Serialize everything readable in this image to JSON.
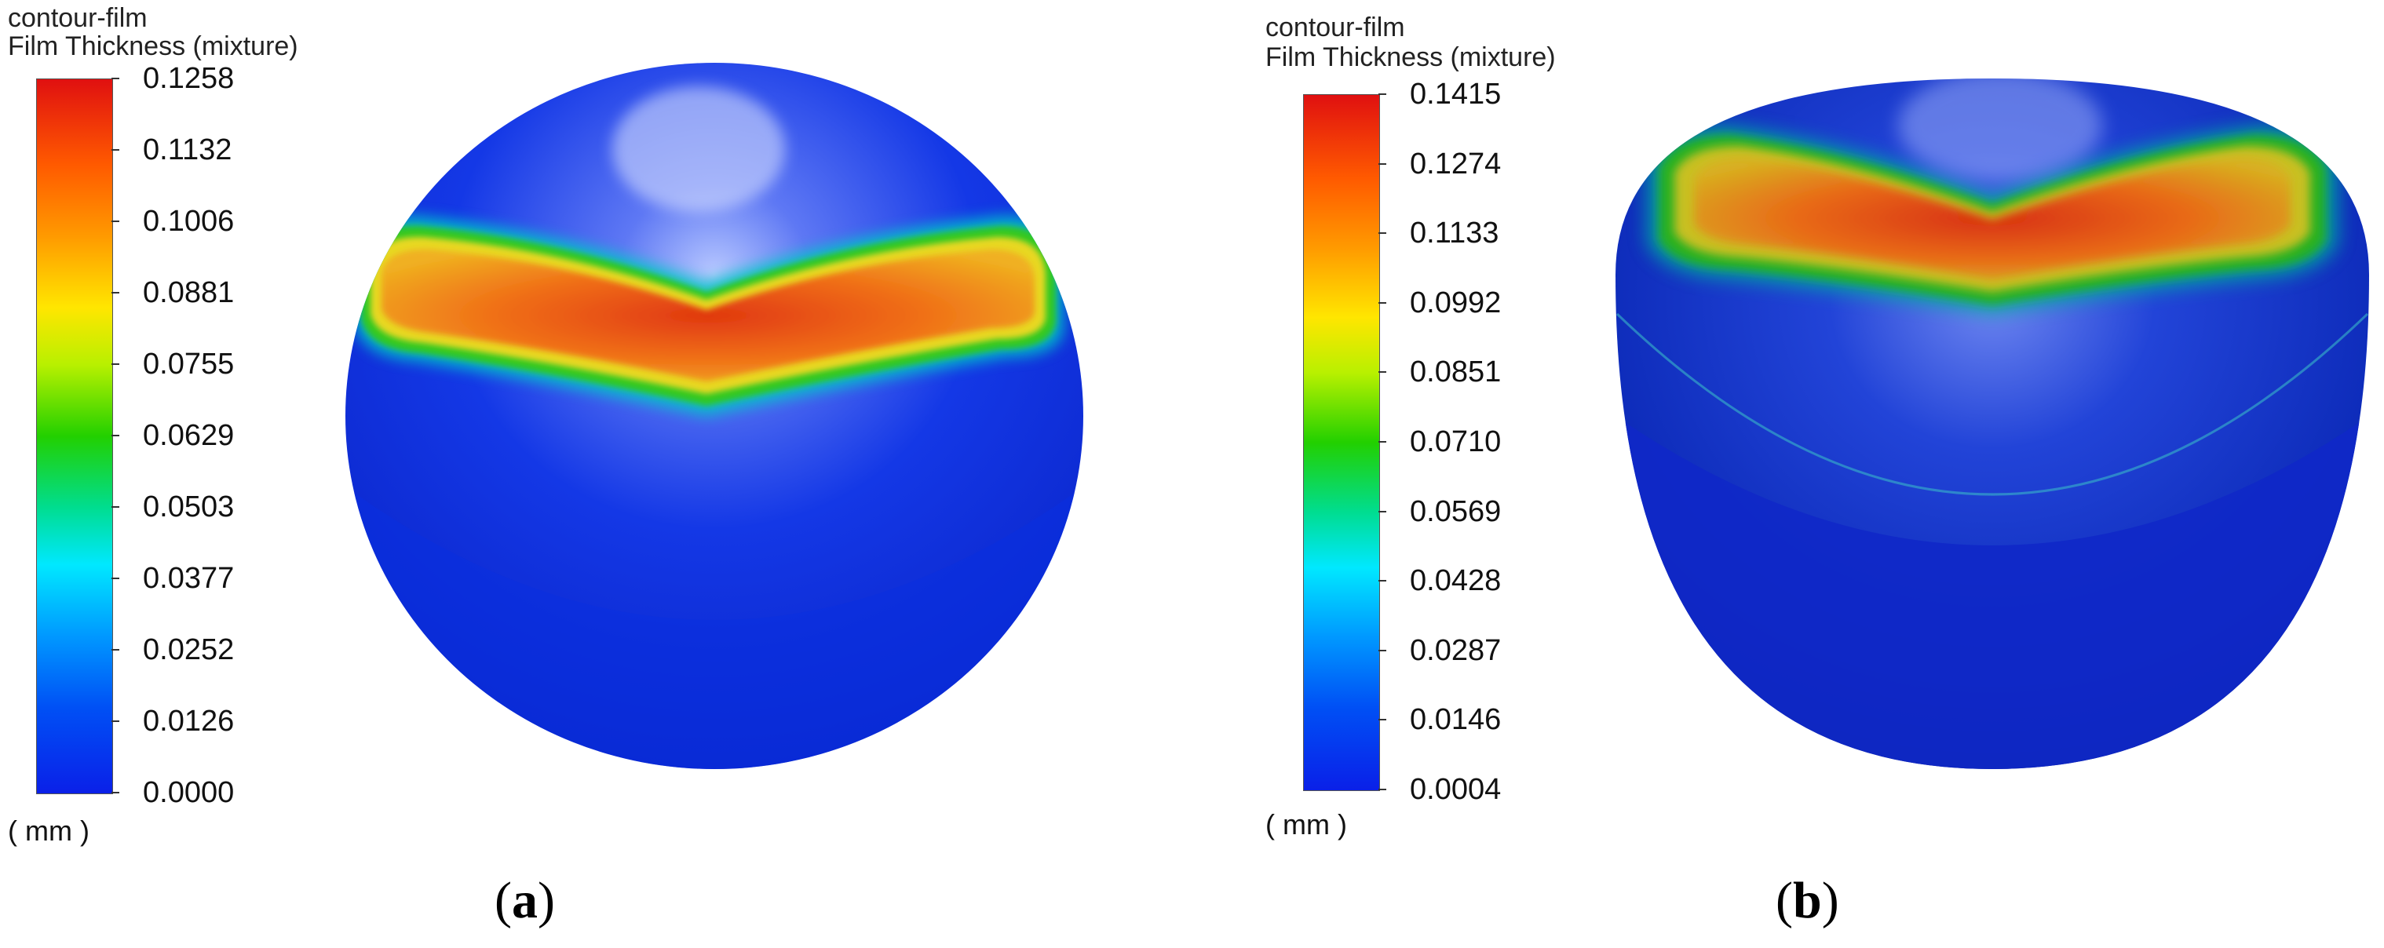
{
  "panels": [
    {
      "id": "a",
      "title_line1": "contour-film",
      "title_line2": "Film Thickness (mixture)",
      "colorbar_ticks": [
        "0.1258",
        "0.1132",
        "0.1006",
        "0.0881",
        "0.0755",
        "0.0629",
        "0.0503",
        "0.0377",
        "0.0252",
        "0.0126",
        "0.0000"
      ],
      "unit": "( mm )",
      "caption_open": "(",
      "caption_letter": "a",
      "caption_close": ")"
    },
    {
      "id": "b",
      "title_line1": "contour-film",
      "title_line2": "Film Thickness (mixture)",
      "colorbar_ticks": [
        "0.1415",
        "0.1274",
        "0.1133",
        "0.0992",
        "0.0851",
        "0.0710",
        "0.0569",
        "0.0428",
        "0.0287",
        "0.0146",
        "0.0004"
      ],
      "unit": "( mm )",
      "caption_open": "(",
      "caption_letter": "b",
      "caption_close": ")"
    }
  ],
  "colors": {
    "jet_top": "#e01010",
    "jet_orange": "#ff8a00",
    "jet_yellow": "#ffff00",
    "jet_green": "#22d000",
    "jet_cyan": "#00e8ff",
    "jet_blue": "#0a20e8",
    "sphere_base": "#0a2ad8"
  }
}
